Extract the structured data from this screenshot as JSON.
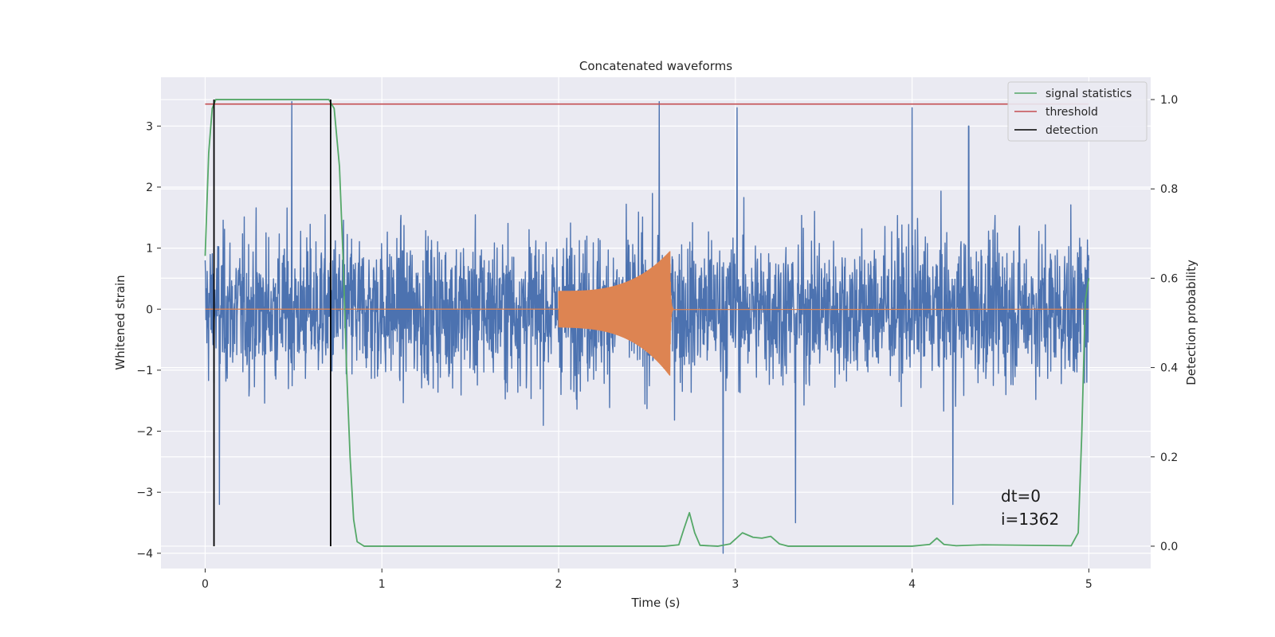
{
  "chart_data": {
    "type": "line",
    "title": "Concatenated waveforms",
    "xlabel": "Time (s)",
    "ylabel": "Whitened strain",
    "y2label": "Detection probability",
    "xlim": [
      -0.25,
      5.35
    ],
    "ylim": [
      -4.25,
      3.8
    ],
    "y2lim": [
      -0.05,
      1.05
    ],
    "xticks": [
      0,
      1,
      2,
      3,
      4,
      5
    ],
    "xtick_labels": [
      "0",
      "1",
      "2",
      "3",
      "4",
      "5"
    ],
    "yticks": [
      -4,
      -3,
      -2,
      -1,
      0,
      1,
      2,
      3
    ],
    "ytick_labels": [
      "−4",
      "−3",
      "−2",
      "−1",
      "0",
      "1",
      "2",
      "3"
    ],
    "y2ticks": [
      0.0,
      0.2,
      0.4,
      0.6,
      0.8,
      1.0
    ],
    "y2tick_labels": [
      "0.0",
      "0.2",
      "0.4",
      "0.6",
      "0.8",
      "1.0"
    ],
    "grid": true,
    "legend_position": "top-right",
    "colors": {
      "strain": "#4c72b0",
      "waveform": "#dd8452",
      "signal_statistics": "#55a868",
      "threshold": "#c44e52",
      "detection": "#000000",
      "background": "#eaeaf2"
    },
    "legend": [
      {
        "label": "signal statistics",
        "color": "#55a868"
      },
      {
        "label": "threshold",
        "color": "#c44e52"
      },
      {
        "label": "detection",
        "color": "#000000"
      }
    ],
    "strain_noise": {
      "t_start": 0,
      "t_end": 5,
      "typical_range": [
        -2.0,
        2.0
      ],
      "peaks": [
        {
          "x": 0.49,
          "y": 3.4
        },
        {
          "x": 2.57,
          "y": 3.4
        },
        {
          "x": 3.01,
          "y": 3.3
        },
        {
          "x": 4.0,
          "y": 3.3
        },
        {
          "x": 4.32,
          "y": 3.0
        },
        {
          "x": 0.08,
          "y": -3.2
        },
        {
          "x": 2.93,
          "y": -4.0
        },
        {
          "x": 3.34,
          "y": -3.5
        },
        {
          "x": 4.23,
          "y": -3.2
        }
      ]
    },
    "waveform": {
      "t_start": 2.0,
      "t_peak": 2.63,
      "t_end": 2.65,
      "amplitude_start": 0.3,
      "amplitude_peak": 0.95
    },
    "threshold": {
      "x": [
        0.0,
        5.0
      ],
      "y": 0.99
    },
    "signal_statistics": {
      "x": [
        0.0,
        0.02,
        0.04,
        0.06,
        0.1,
        0.3,
        0.5,
        0.66,
        0.7,
        0.73,
        0.76,
        0.78,
        0.8,
        0.82,
        0.84,
        0.86,
        0.9,
        1.5,
        2.6,
        2.68,
        2.71,
        2.74,
        2.77,
        2.8,
        2.9,
        2.97,
        3.04,
        3.1,
        3.15,
        3.2,
        3.25,
        3.3,
        4.0,
        4.1,
        4.14,
        4.18,
        4.25,
        4.4,
        4.9,
        4.94,
        4.96,
        4.98,
        5.0
      ],
      "y": [
        0.65,
        0.88,
        0.98,
        1.0,
        1.0,
        1.0,
        1.0,
        1.0,
        1.0,
        0.98,
        0.85,
        0.65,
        0.4,
        0.2,
        0.06,
        0.01,
        0.0,
        0.0,
        0.0,
        0.003,
        0.04,
        0.075,
        0.03,
        0.002,
        0.0,
        0.005,
        0.03,
        0.02,
        0.018,
        0.022,
        0.005,
        0.0,
        0.0,
        0.004,
        0.018,
        0.004,
        0.001,
        0.003,
        0.001,
        0.03,
        0.25,
        0.55,
        0.6
      ]
    },
    "detections": [
      0.05,
      0.71
    ],
    "annotations": [
      "dt=0",
      "i=1362"
    ]
  }
}
